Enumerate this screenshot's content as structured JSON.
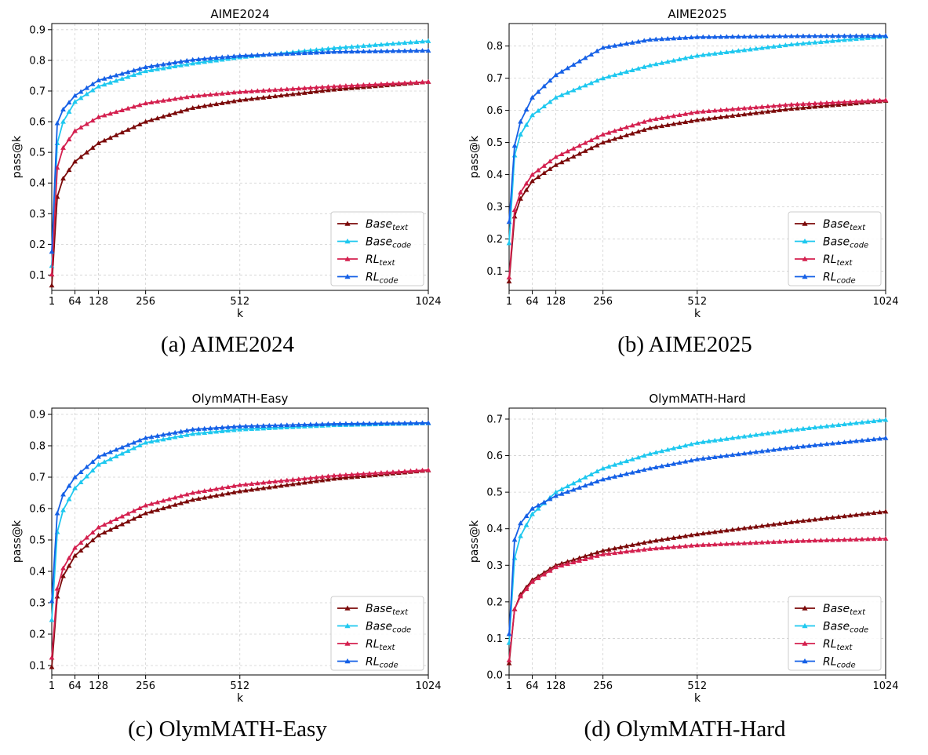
{
  "legend_series": [
    {
      "key": "base_text",
      "base": "Base",
      "sub": "text",
      "color": "#7b0a0a"
    },
    {
      "key": "base_code",
      "base": "Base",
      "sub": "code",
      "color": "#1ec8ef"
    },
    {
      "key": "rl_text",
      "base": "RL",
      "sub": "text",
      "color": "#d4204f"
    },
    {
      "key": "rl_code",
      "base": "RL",
      "sub": "code",
      "color": "#1560e6"
    }
  ],
  "chart_data": [
    {
      "type": "line",
      "title": "AIME2024",
      "caption": "(a)  AIME2024",
      "xlabel": "k",
      "ylabel": "pass@k",
      "xticks": [
        1,
        64,
        128,
        256,
        512,
        1024
      ],
      "yticks": [
        0.1,
        0.2,
        0.3,
        0.4,
        0.5,
        0.6,
        0.7,
        0.8,
        0.9
      ],
      "xlim": [
        1,
        1024
      ],
      "ylim": [
        0.05,
        0.92
      ],
      "legend": "lower-right",
      "grid": true,
      "series": [
        {
          "key": "base_text",
          "points": [
            [
              1,
              0.066
            ],
            [
              16,
              0.355
            ],
            [
              32,
              0.415
            ],
            [
              64,
              0.47
            ],
            [
              128,
              0.53
            ],
            [
              256,
              0.6
            ],
            [
              384,
              0.645
            ],
            [
              512,
              0.67
            ],
            [
              768,
              0.705
            ],
            [
              1024,
              0.73
            ]
          ]
        },
        {
          "key": "base_code",
          "points": [
            [
              1,
              0.13
            ],
            [
              16,
              0.53
            ],
            [
              32,
              0.6
            ],
            [
              64,
              0.665
            ],
            [
              128,
              0.715
            ],
            [
              256,
              0.765
            ],
            [
              384,
              0.79
            ],
            [
              512,
              0.81
            ],
            [
              768,
              0.84
            ],
            [
              1024,
              0.863
            ]
          ]
        },
        {
          "key": "rl_text",
          "points": [
            [
              1,
              0.102
            ],
            [
              16,
              0.45
            ],
            [
              32,
              0.515
            ],
            [
              64,
              0.57
            ],
            [
              128,
              0.615
            ],
            [
              256,
              0.66
            ],
            [
              384,
              0.683
            ],
            [
              512,
              0.697
            ],
            [
              768,
              0.715
            ],
            [
              1024,
              0.73
            ]
          ]
        },
        {
          "key": "rl_code",
          "points": [
            [
              1,
              0.176
            ],
            [
              16,
              0.595
            ],
            [
              32,
              0.64
            ],
            [
              64,
              0.685
            ],
            [
              128,
              0.735
            ],
            [
              256,
              0.778
            ],
            [
              384,
              0.802
            ],
            [
              512,
              0.815
            ],
            [
              768,
              0.828
            ],
            [
              1024,
              0.832
            ]
          ]
        }
      ]
    },
    {
      "type": "line",
      "title": "AIME2025",
      "caption": "(b)  AIME2025",
      "xlabel": "k",
      "ylabel": "pass@k",
      "xticks": [
        1,
        64,
        128,
        256,
        512,
        1024
      ],
      "yticks": [
        0.1,
        0.2,
        0.3,
        0.4,
        0.5,
        0.6,
        0.7,
        0.8
      ],
      "xlim": [
        1,
        1024
      ],
      "ylim": [
        0.04,
        0.87
      ],
      "legend": "lower-right",
      "grid": true,
      "series": [
        {
          "key": "base_text",
          "points": [
            [
              1,
              0.068
            ],
            [
              16,
              0.27
            ],
            [
              32,
              0.325
            ],
            [
              64,
              0.38
            ],
            [
              128,
              0.43
            ],
            [
              256,
              0.5
            ],
            [
              384,
              0.545
            ],
            [
              512,
              0.57
            ],
            [
              768,
              0.605
            ],
            [
              1024,
              0.63
            ]
          ]
        },
        {
          "key": "base_code",
          "points": [
            [
              1,
              0.187
            ],
            [
              16,
              0.46
            ],
            [
              32,
              0.525
            ],
            [
              64,
              0.585
            ],
            [
              128,
              0.64
            ],
            [
              256,
              0.7
            ],
            [
              384,
              0.74
            ],
            [
              512,
              0.77
            ],
            [
              768,
              0.805
            ],
            [
              1024,
              0.83
            ]
          ]
        },
        {
          "key": "rl_text",
          "points": [
            [
              1,
              0.08
            ],
            [
              16,
              0.29
            ],
            [
              32,
              0.345
            ],
            [
              64,
              0.4
            ],
            [
              128,
              0.455
            ],
            [
              256,
              0.525
            ],
            [
              384,
              0.57
            ],
            [
              512,
              0.595
            ],
            [
              768,
              0.618
            ],
            [
              1024,
              0.632
            ]
          ]
        },
        {
          "key": "rl_code",
          "points": [
            [
              1,
              0.253
            ],
            [
              16,
              0.49
            ],
            [
              32,
              0.565
            ],
            [
              64,
              0.64
            ],
            [
              128,
              0.71
            ],
            [
              256,
              0.795
            ],
            [
              384,
              0.82
            ],
            [
              512,
              0.828
            ],
            [
              768,
              0.831
            ],
            [
              1024,
              0.832
            ]
          ]
        }
      ]
    },
    {
      "type": "line",
      "title": "OlymMATH-Easy",
      "caption": "(c)  OlymMATH-Easy",
      "xlabel": "k",
      "ylabel": "pass@k",
      "xticks": [
        1,
        64,
        128,
        256,
        512,
        1024
      ],
      "yticks": [
        0.1,
        0.2,
        0.3,
        0.4,
        0.5,
        0.6,
        0.7,
        0.8,
        0.9
      ],
      "xlim": [
        1,
        1024
      ],
      "ylim": [
        0.07,
        0.92
      ],
      "legend": "lower-right",
      "grid": true,
      "series": [
        {
          "key": "base_text",
          "points": [
            [
              1,
              0.095
            ],
            [
              16,
              0.32
            ],
            [
              32,
              0.385
            ],
            [
              64,
              0.45
            ],
            [
              128,
              0.515
            ],
            [
              256,
              0.585
            ],
            [
              384,
              0.628
            ],
            [
              512,
              0.655
            ],
            [
              768,
              0.695
            ],
            [
              1024,
              0.722
            ]
          ]
        },
        {
          "key": "base_code",
          "points": [
            [
              1,
              0.245
            ],
            [
              16,
              0.525
            ],
            [
              32,
              0.595
            ],
            [
              64,
              0.665
            ],
            [
              128,
              0.74
            ],
            [
              256,
              0.81
            ],
            [
              384,
              0.838
            ],
            [
              512,
              0.852
            ],
            [
              768,
              0.866
            ],
            [
              1024,
              0.872
            ]
          ]
        },
        {
          "key": "rl_text",
          "points": [
            [
              1,
              0.125
            ],
            [
              16,
              0.345
            ],
            [
              32,
              0.41
            ],
            [
              64,
              0.475
            ],
            [
              128,
              0.54
            ],
            [
              256,
              0.61
            ],
            [
              384,
              0.65
            ],
            [
              512,
              0.675
            ],
            [
              768,
              0.705
            ],
            [
              1024,
              0.723
            ]
          ]
        },
        {
          "key": "rl_code",
          "points": [
            [
              1,
              0.305
            ],
            [
              16,
              0.585
            ],
            [
              32,
              0.645
            ],
            [
              64,
              0.7
            ],
            [
              128,
              0.765
            ],
            [
              256,
              0.825
            ],
            [
              384,
              0.852
            ],
            [
              512,
              0.862
            ],
            [
              768,
              0.87
            ],
            [
              1024,
              0.873
            ]
          ]
        }
      ]
    },
    {
      "type": "line",
      "title": "OlymMATH-Hard",
      "caption": "(d)  OlymMATH-Hard",
      "xlabel": "k",
      "ylabel": "pass@k",
      "xticks": [
        1,
        64,
        128,
        256,
        512,
        1024
      ],
      "yticks": [
        0.0,
        0.1,
        0.2,
        0.3,
        0.4,
        0.5,
        0.6,
        0.7
      ],
      "xlim": [
        1,
        1024
      ],
      "ylim": [
        0.0,
        0.73
      ],
      "legend": "lower-right",
      "grid": true,
      "series": [
        {
          "key": "base_text",
          "points": [
            [
              1,
              0.032
            ],
            [
              16,
              0.18
            ],
            [
              32,
              0.22
            ],
            [
              64,
              0.26
            ],
            [
              128,
              0.3
            ],
            [
              256,
              0.34
            ],
            [
              384,
              0.365
            ],
            [
              512,
              0.385
            ],
            [
              768,
              0.418
            ],
            [
              1024,
              0.447
            ]
          ]
        },
        {
          "key": "base_code",
          "points": [
            [
              1,
              0.088
            ],
            [
              16,
              0.32
            ],
            [
              32,
              0.38
            ],
            [
              64,
              0.44
            ],
            [
              128,
              0.5
            ],
            [
              256,
              0.565
            ],
            [
              384,
              0.605
            ],
            [
              512,
              0.635
            ],
            [
              768,
              0.67
            ],
            [
              1024,
              0.698
            ]
          ]
        },
        {
          "key": "rl_text",
          "points": [
            [
              1,
              0.04
            ],
            [
              16,
              0.18
            ],
            [
              32,
              0.215
            ],
            [
              64,
              0.255
            ],
            [
              128,
              0.295
            ],
            [
              256,
              0.33
            ],
            [
              384,
              0.345
            ],
            [
              512,
              0.355
            ],
            [
              768,
              0.366
            ],
            [
              1024,
              0.373
            ]
          ]
        },
        {
          "key": "rl_code",
          "points": [
            [
              1,
              0.112
            ],
            [
              16,
              0.37
            ],
            [
              32,
              0.415
            ],
            [
              64,
              0.455
            ],
            [
              128,
              0.49
            ],
            [
              256,
              0.535
            ],
            [
              384,
              0.565
            ],
            [
              512,
              0.59
            ],
            [
              768,
              0.622
            ],
            [
              1024,
              0.648
            ]
          ]
        }
      ]
    }
  ]
}
